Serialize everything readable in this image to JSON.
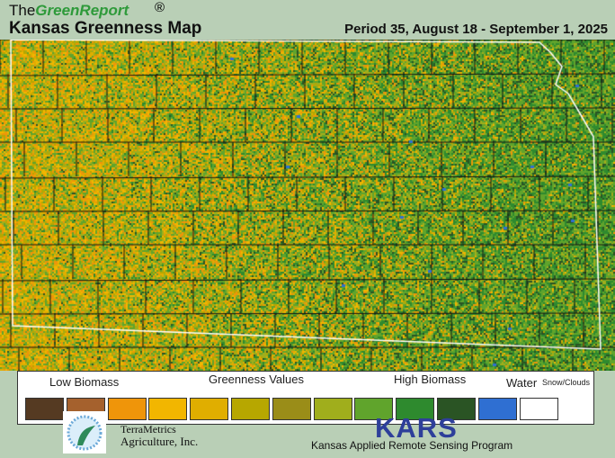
{
  "header": {
    "brand_prefix": "The",
    "brand_name": "GreenReport",
    "registered": "®",
    "title": "Kansas Greenness Map",
    "period": "Period 35, August 18 - September 1, 2025"
  },
  "legend": {
    "low_label": "Low Biomass",
    "mid_label": "Greenness Values",
    "high_label": "High Biomass",
    "water_label": "Water",
    "snow_label": "Snow/Clouds",
    "swatches": [
      "#553a22",
      "#a5612d",
      "#ef950a",
      "#f2b600",
      "#e0ae00",
      "#b7a700",
      "#9a8d18",
      "#a0ae1c",
      "#60a42c",
      "#2e8a2e",
      "#2a5424",
      "#2f6fd2",
      "#ffffff"
    ]
  },
  "logos": {
    "terrametrics_line1": "TerraMetrics",
    "terrametrics_line2": "Agriculture, Inc.",
    "kars": "KARS",
    "kars_full": "Kansas Applied Remote Sensing Program"
  },
  "map": {
    "state_outline_color": "#ffffff",
    "county_line_color": "#111111",
    "water_color": "#2f6fd2"
  }
}
